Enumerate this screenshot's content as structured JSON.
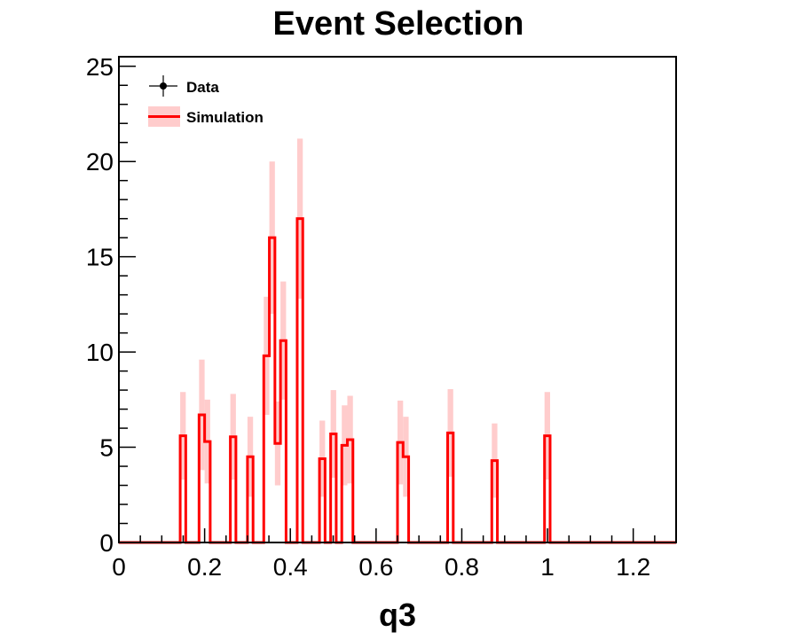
{
  "chart_data": {
    "type": "bar",
    "title": "Event Selection",
    "xlabel": "q3",
    "ylabel": "",
    "xlim": [
      0,
      1.3
    ],
    "ylim": [
      0,
      25.5
    ],
    "x_ticks": [
      0,
      0.2,
      0.4,
      0.6,
      0.8,
      1,
      1.2
    ],
    "x_tick_labels": [
      "0",
      "0.2",
      "0.4",
      "0.6",
      "0.8",
      "1",
      "1.2"
    ],
    "y_ticks": [
      0,
      5,
      10,
      15,
      20,
      25
    ],
    "y_tick_labels": [
      "0",
      "5",
      "10",
      "15",
      "20",
      "25"
    ],
    "bin_width": 0.013,
    "legend": {
      "placement": "top-left",
      "entries": [
        "Data",
        "Simulation"
      ]
    },
    "colors": {
      "simulation_line": "#ff0000",
      "simulation_band": "#ffcccc",
      "data": "#000000"
    },
    "series": [
      {
        "name": "Simulation",
        "bins": [
          {
            "x": 0.143,
            "value": 5.6,
            "err": 2.3
          },
          {
            "x": 0.187,
            "value": 6.7,
            "err": 2.9
          },
          {
            "x": 0.2,
            "value": 5.3,
            "err": 2.2
          },
          {
            "x": 0.26,
            "value": 5.55,
            "err": 2.25
          },
          {
            "x": 0.3,
            "value": 4.5,
            "err": 2.1
          },
          {
            "x": 0.338,
            "value": 9.8,
            "err": 3.1
          },
          {
            "x": 0.351,
            "value": 16.0,
            "err": 4.0
          },
          {
            "x": 0.364,
            "value": 5.2,
            "err": 2.2
          },
          {
            "x": 0.377,
            "value": 10.6,
            "err": 3.1
          },
          {
            "x": 0.416,
            "value": 17.0,
            "err": 4.2
          },
          {
            "x": 0.468,
            "value": 4.4,
            "err": 2.0
          },
          {
            "x": 0.494,
            "value": 5.7,
            "err": 2.3
          },
          {
            "x": 0.52,
            "value": 5.1,
            "err": 2.1
          },
          {
            "x": 0.533,
            "value": 5.4,
            "err": 2.3
          },
          {
            "x": 0.65,
            "value": 5.25,
            "err": 2.2
          },
          {
            "x": 0.663,
            "value": 4.5,
            "err": 2.1
          },
          {
            "x": 0.767,
            "value": 5.75,
            "err": 2.3
          },
          {
            "x": 0.87,
            "value": 4.3,
            "err": 1.95
          },
          {
            "x": 0.993,
            "value": 5.6,
            "err": 2.3
          }
        ]
      },
      {
        "name": "Data",
        "bins": []
      }
    ]
  }
}
